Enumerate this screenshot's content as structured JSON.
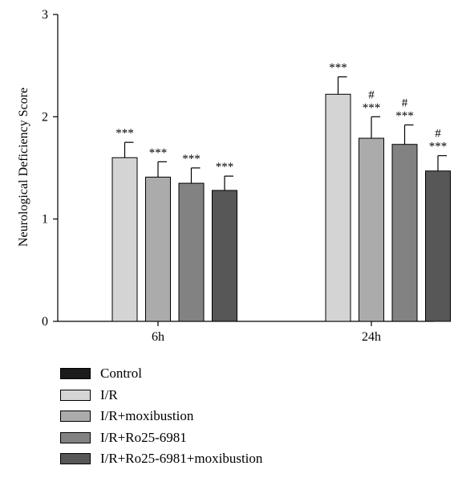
{
  "chart_data": {
    "type": "bar",
    "title": "",
    "xlabel": "",
    "ylabel": "Neurological Deficiency Score",
    "ylim": [
      0,
      3
    ],
    "yticks": [
      "0",
      "1",
      "2",
      "3"
    ],
    "categories": [
      "6h",
      "24h"
    ],
    "grid": false,
    "legend_position": "bottom",
    "series": [
      {
        "name": "Control",
        "color": "#1c1c1c",
        "values": [
          0,
          0
        ],
        "errors": [
          0,
          0
        ],
        "annotations": [
          "",
          ""
        ]
      },
      {
        "name": "I/R",
        "color": "#d4d4d4",
        "values": [
          1.6,
          2.22
        ],
        "errors": [
          0.15,
          0.17
        ],
        "annotations": [
          "***",
          "***"
        ]
      },
      {
        "name": "I/R+moxibustion",
        "color": "#ababab",
        "values": [
          1.41,
          1.79
        ],
        "errors": [
          0.15,
          0.21
        ],
        "annotations": [
          "***",
          "#\n***"
        ]
      },
      {
        "name": "I/R+Ro25-6981",
        "color": "#828282",
        "values": [
          1.35,
          1.73
        ],
        "errors": [
          0.15,
          0.19
        ],
        "annotations": [
          "***",
          "#\n***"
        ]
      },
      {
        "name": "I/R+Ro25-6981+moxibustion",
        "color": "#575757",
        "values": [
          1.28,
          1.47
        ],
        "errors": [
          0.14,
          0.15
        ],
        "annotations": [
          "***",
          "#\n***"
        ]
      }
    ]
  }
}
